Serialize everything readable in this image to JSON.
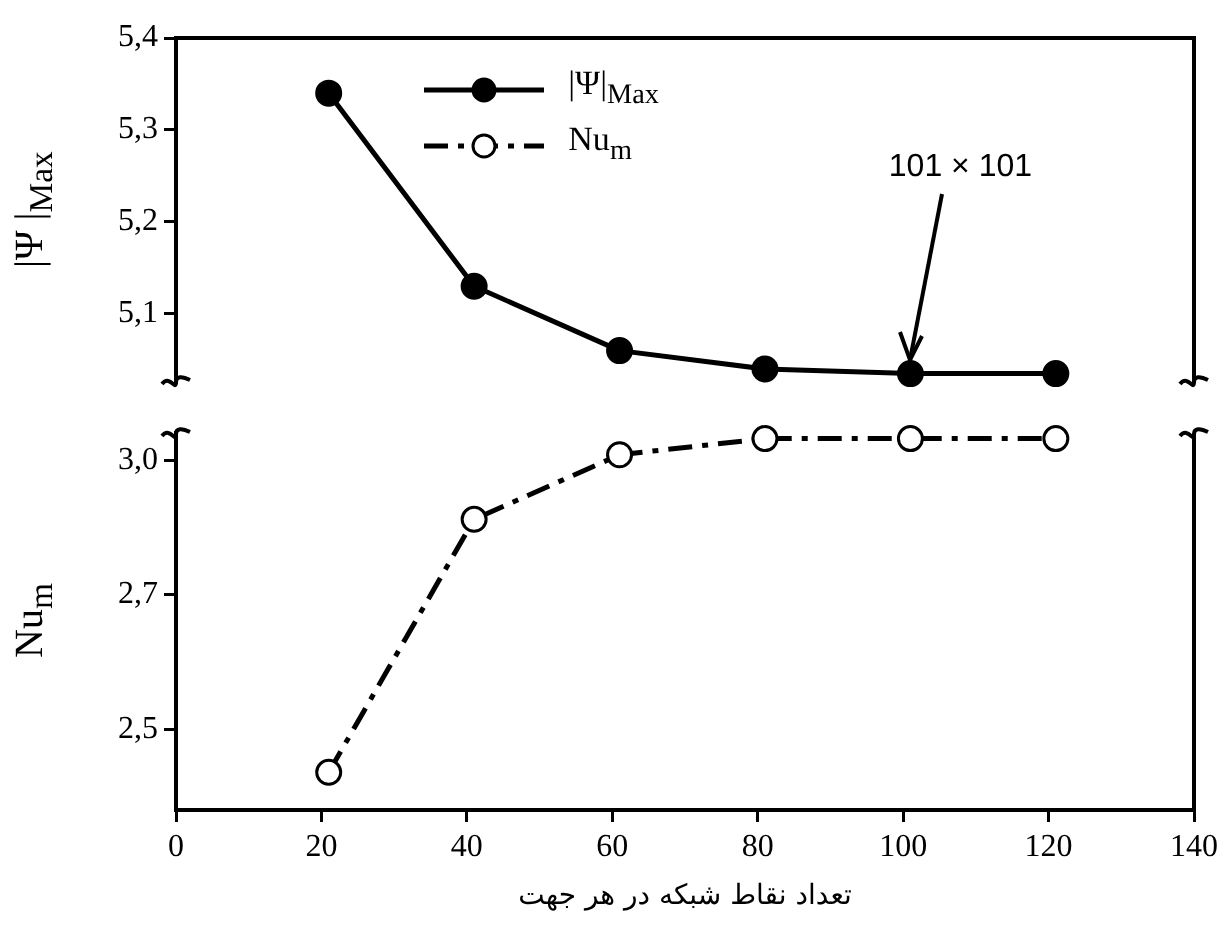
{
  "chart_data": [
    {
      "type": "line",
      "ylabel": "|Ψ |$_{Max}$",
      "x": [
        21,
        41,
        61,
        81,
        101,
        121
      ],
      "series": [
        {
          "name": "|Ψ|$_{Max}$",
          "color": "#000000",
          "values": [
            5.34,
            5.13,
            5.06,
            5.04,
            5.035,
            5.035
          ],
          "line_style": "solid"
        }
      ],
      "xlim": [
        0,
        140
      ],
      "xticks": [
        0,
        20,
        40,
        60,
        80,
        100,
        120,
        140
      ],
      "ylim": [
        5.025,
        5.4
      ],
      "yticks": [
        {
          "value": 5.1,
          "label": "5,1"
        },
        {
          "value": 5.2,
          "label": "5,2"
        },
        {
          "value": 5.3,
          "label": "5,3"
        },
        {
          "value": 5.4,
          "label": "5,4"
        }
      ],
      "annotations": [
        {
          "text": "101 × 101",
          "x": 101,
          "y": 5.035
        }
      ],
      "tick_labels": "y",
      "marker": "circle",
      "legend": "top",
      "grid": false
    },
    {
      "type": "line",
      "xlabel": "تعداد نقاط شبکه در هر جهت",
      "ylabel": "Nu$_{m}$",
      "x": [
        21,
        41,
        61,
        81,
        101,
        121
      ],
      "series": [
        {
          "name": "Nu$_{m}$",
          "color": "#000000",
          "values": [
            2.42,
            2.89,
            3.01,
            3.04,
            3.04,
            3.04
          ],
          "line_style": "dashed"
        }
      ],
      "xlim": [
        0,
        140
      ],
      "xticks": [
        0,
        20,
        40,
        60,
        80,
        100,
        120,
        140
      ],
      "ylim": [
        2.35,
        3.05
      ],
      "yticks": [
        {
          "value": 2.5,
          "label": "2,5"
        },
        {
          "value": 2.75,
          "label": "2,7"
        },
        {
          "value": 3.0,
          "label": "3,0"
        }
      ],
      "marker": "circle",
      "legend": "top",
      "grid": false
    }
  ]
}
